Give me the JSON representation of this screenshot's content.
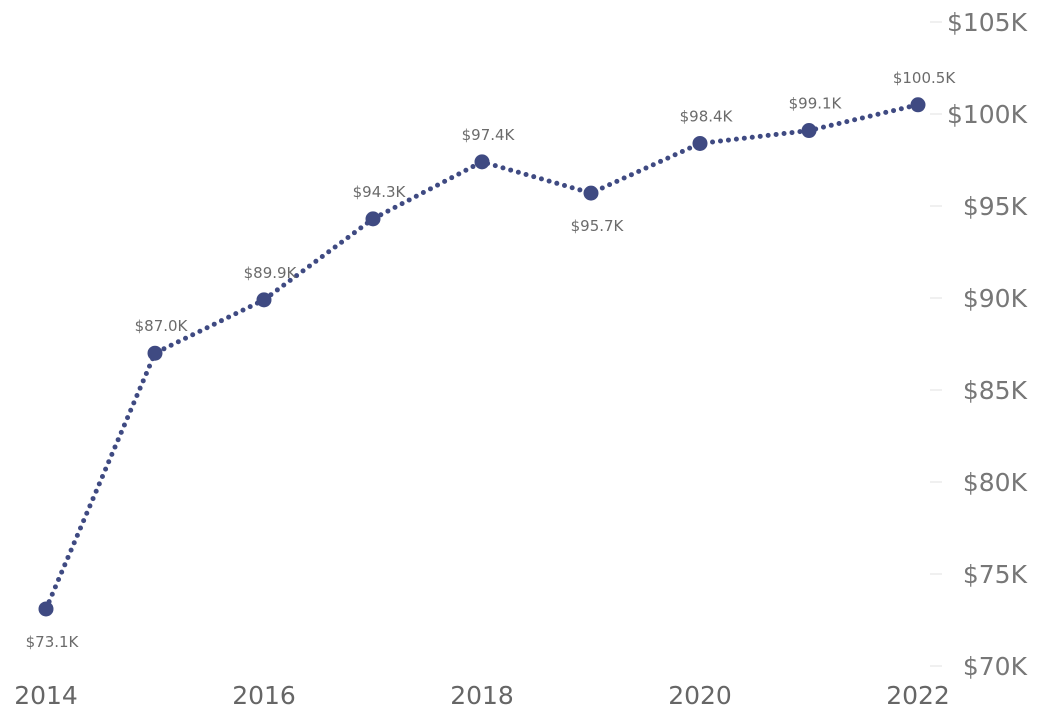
{
  "chart_data": {
    "type": "line",
    "title": "",
    "xlabel": "",
    "ylabel": "",
    "x": [
      2014,
      2015,
      2016,
      2017,
      2018,
      2019,
      2020,
      2021,
      2022
    ],
    "x_tick_labels": [
      "2014",
      "2016",
      "2018",
      "2020",
      "2022"
    ],
    "y_tick_labels": [
      "$70K",
      "$75K",
      "$80K",
      "$85K",
      "$90K",
      "$95K",
      "$100K",
      "$105K"
    ],
    "y_ticks": [
      70000,
      75000,
      80000,
      85000,
      90000,
      95000,
      100000,
      105000
    ],
    "ylim": [
      70000,
      105000
    ],
    "y_axis_side": "right",
    "grid": false,
    "legend": "none",
    "series": [
      {
        "values": [
          73100,
          87000,
          89900,
          94300,
          97400,
          95700,
          98400,
          99100,
          100500
        ],
        "data_labels": [
          "$73.1K",
          "$87.0K",
          "$89.9K",
          "$94.3K",
          "$97.4K",
          "$95.7K",
          "$98.4K",
          "$99.1K",
          "$100.5K"
        ],
        "line_style": "dotted",
        "marker": "circle",
        "color": "#3f4a82"
      }
    ]
  }
}
